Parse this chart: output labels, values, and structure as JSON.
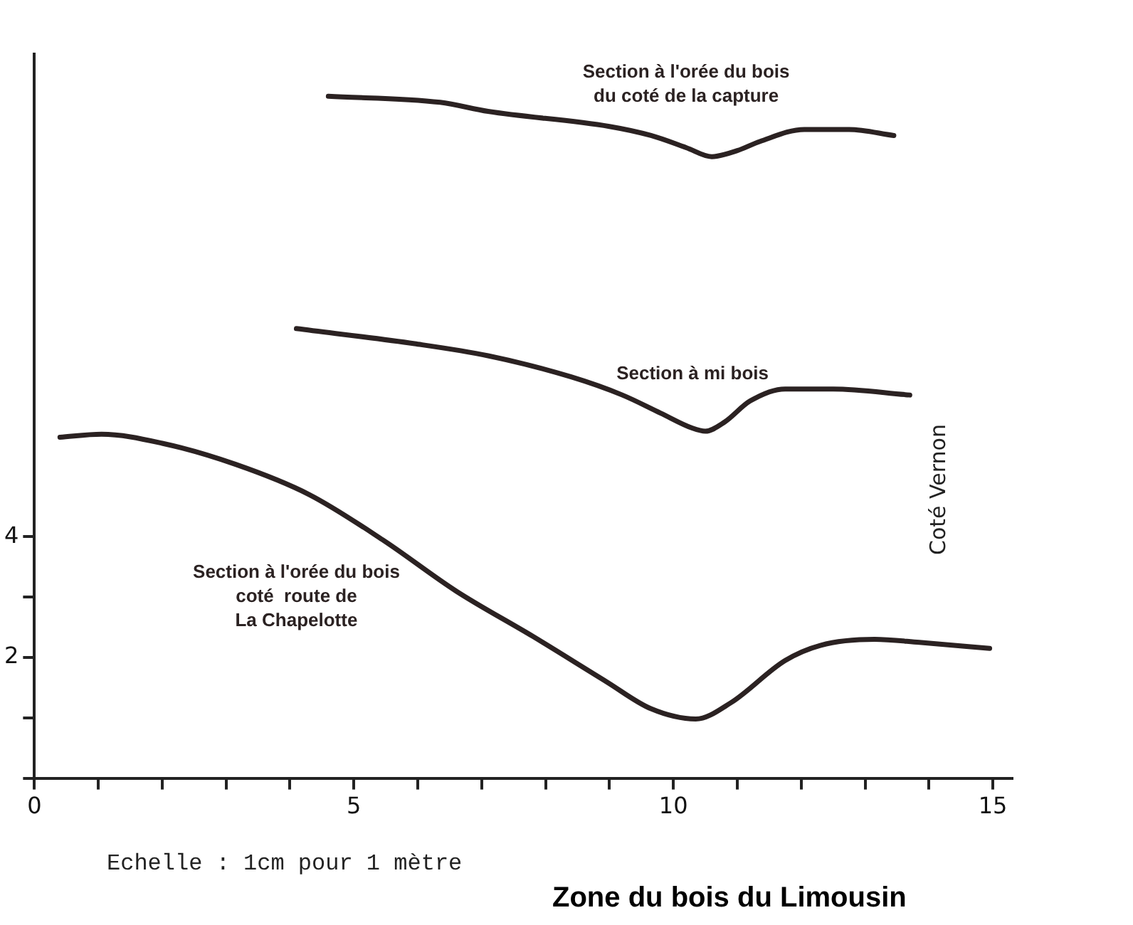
{
  "chart_data": {
    "type": "line",
    "title": "Zone du bois du Limousin",
    "annotations": [
      "Coté Vernon",
      "Echelle : 1cm pour 1 mètre"
    ],
    "xlim": [
      0,
      15.3
    ],
    "ylim": [
      0,
      12
    ],
    "xticks": [
      0,
      {
        "value": 1,
        "label": null
      },
      {
        "value": 2,
        "label": null
      },
      {
        "value": 3,
        "label": null
      },
      {
        "value": 4,
        "label": null
      },
      5,
      {
        "value": 6,
        "label": null
      },
      {
        "value": 7,
        "label": null
      },
      {
        "value": 8,
        "label": null
      },
      {
        "value": 9,
        "label": null
      },
      10,
      {
        "value": 11,
        "label": null
      },
      {
        "value": 12,
        "label": null
      },
      {
        "value": 13,
        "label": null
      },
      {
        "value": 14,
        "label": null
      },
      15
    ],
    "yticks": [
      {
        "value": 0,
        "label": null
      },
      {
        "value": 1,
        "label": null
      },
      2,
      {
        "value": 3,
        "label": null
      },
      4
    ],
    "grid": false,
    "legend": false,
    "marker": "none",
    "line_style": "solid",
    "series": [
      {
        "name": "Section à l'orée du bois\ndu coté de la capture",
        "color": "#2b2222",
        "x": [
          4.6,
          6.35,
          7.1,
          9.0,
          9.65,
          10.2,
          10.6,
          11.0,
          11.35,
          12.05,
          12.75,
          13.45
        ],
        "values": [
          11.3,
          11.2,
          11.05,
          10.8,
          10.65,
          10.45,
          10.3,
          10.4,
          10.55,
          10.75,
          10.75,
          10.65
        ]
      },
      {
        "name": "Section à mi bois",
        "color": "#2b2222",
        "x": [
          4.1,
          5.95,
          7.1,
          8.4,
          9.2,
          9.8,
          10.3,
          10.5,
          10.8,
          11.2,
          11.75,
          12.5,
          13.7
        ],
        "values": [
          7.45,
          7.2,
          7.0,
          6.65,
          6.35,
          6.05,
          5.8,
          5.75,
          5.9,
          6.25,
          6.45,
          6.45,
          6.35
        ]
      },
      {
        "name": "Section à l'orée du bois\ncoté  route de\nLa Chapelotte",
        "color": "#2b2222",
        "x": [
          0.4,
          1.05,
          2.0,
          3.15,
          4.3,
          5.45,
          6.6,
          7.8,
          8.95,
          9.65,
          10.35,
          10.9,
          11.75,
          12.3,
          13.15,
          13.85,
          14.95
        ],
        "values": [
          5.65,
          5.7,
          5.55,
          5.2,
          4.7,
          3.95,
          3.1,
          2.35,
          1.6,
          1.15,
          0.98,
          1.25,
          1.95,
          2.2,
          2.3,
          2.25,
          2.15
        ]
      }
    ]
  }
}
